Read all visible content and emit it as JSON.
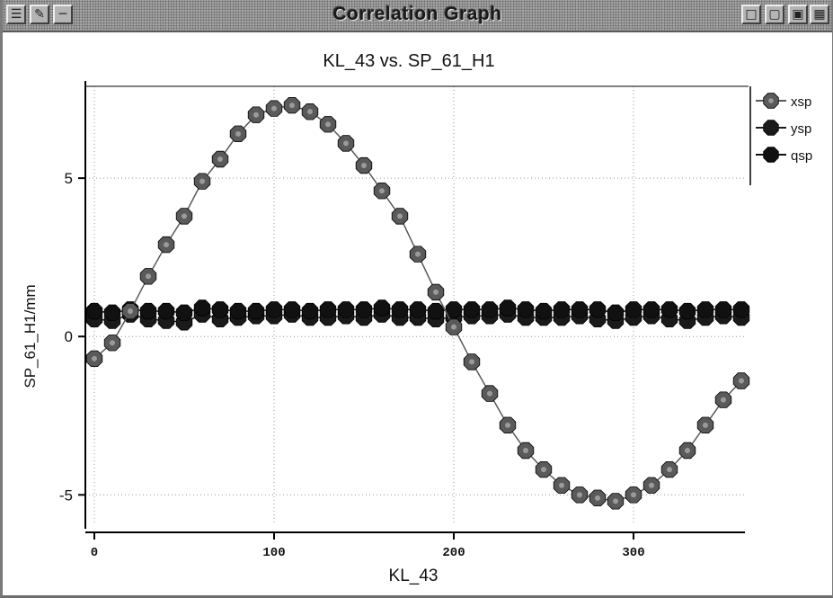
{
  "window": {
    "title": "Correlation Graph",
    "left_buttons": [
      "menu-icon",
      "pencil-icon",
      "minimize-bar-icon"
    ],
    "right_buttons": [
      "minimize-icon",
      "maximize-icon",
      "restore-icon",
      "close-icon"
    ]
  },
  "colors": {
    "xsp": "#5a5a5a",
    "ysp": "#1a1a1a",
    "qsp": "#111111",
    "grid": "#9a9a9a",
    "axis": "#000000"
  },
  "chart_data": {
    "type": "scatter",
    "title": "KL_43 vs. SP_61_H1",
    "xlabel": "KL_43",
    "ylabel": "SP_61_H1/mm",
    "xlim": [
      -5,
      362
    ],
    "ylim": [
      -5.9,
      7.9
    ],
    "xticks": [
      0,
      100,
      200,
      300
    ],
    "yticks": [
      -5,
      0,
      5
    ],
    "grid": true,
    "legend_position": "top-right",
    "series": [
      {
        "name": "xsp",
        "x": [
          0,
          10,
          20,
          30,
          40,
          50,
          60,
          70,
          80,
          90,
          100,
          110,
          120,
          130,
          140,
          150,
          160,
          170,
          180,
          190,
          200,
          210,
          220,
          230,
          240,
          250,
          260,
          270,
          280,
          290,
          300,
          310,
          320,
          330,
          340,
          350,
          360
        ],
        "y": [
          -0.7,
          -0.2,
          0.8,
          1.9,
          2.9,
          3.8,
          4.9,
          5.6,
          6.4,
          7.0,
          7.2,
          7.3,
          7.1,
          6.7,
          6.1,
          5.4,
          4.6,
          3.8,
          2.6,
          1.4,
          0.3,
          -0.8,
          -1.8,
          -2.8,
          -3.6,
          -4.2,
          -4.7,
          -5.0,
          -5.1,
          -5.2,
          -5.0,
          -4.7,
          -4.2,
          -3.6,
          -2.8,
          -2.0,
          -1.4
        ],
        "marker": "octagon-dot"
      },
      {
        "name": "ysp",
        "x": [
          0,
          10,
          20,
          30,
          40,
          50,
          60,
          70,
          80,
          90,
          100,
          110,
          120,
          130,
          140,
          150,
          160,
          170,
          180,
          190,
          200,
          210,
          220,
          230,
          240,
          250,
          260,
          270,
          280,
          290,
          300,
          310,
          320,
          330,
          340,
          350,
          360
        ],
        "y": [
          0.55,
          0.5,
          0.7,
          0.55,
          0.5,
          0.45,
          0.7,
          0.55,
          0.6,
          0.65,
          0.65,
          0.7,
          0.6,
          0.6,
          0.65,
          0.6,
          0.7,
          0.6,
          0.6,
          0.55,
          0.6,
          0.65,
          0.65,
          0.7,
          0.6,
          0.6,
          0.6,
          0.65,
          0.55,
          0.5,
          0.6,
          0.65,
          0.55,
          0.5,
          0.6,
          0.65,
          0.6
        ],
        "marker": "octagon"
      },
      {
        "name": "qsp",
        "x": [
          0,
          10,
          20,
          30,
          40,
          50,
          60,
          70,
          80,
          90,
          100,
          110,
          120,
          130,
          140,
          150,
          160,
          170,
          180,
          190,
          200,
          210,
          220,
          230,
          240,
          250,
          260,
          270,
          280,
          290,
          300,
          310,
          320,
          330,
          340,
          350,
          360
        ],
        "y": [
          0.8,
          0.75,
          0.85,
          0.8,
          0.8,
          0.75,
          0.9,
          0.85,
          0.8,
          0.8,
          0.85,
          0.85,
          0.8,
          0.85,
          0.85,
          0.85,
          0.9,
          0.85,
          0.85,
          0.8,
          0.85,
          0.85,
          0.85,
          0.9,
          0.85,
          0.8,
          0.85,
          0.85,
          0.85,
          0.75,
          0.85,
          0.85,
          0.85,
          0.8,
          0.85,
          0.85,
          0.85
        ],
        "marker": "octagon"
      }
    ]
  }
}
